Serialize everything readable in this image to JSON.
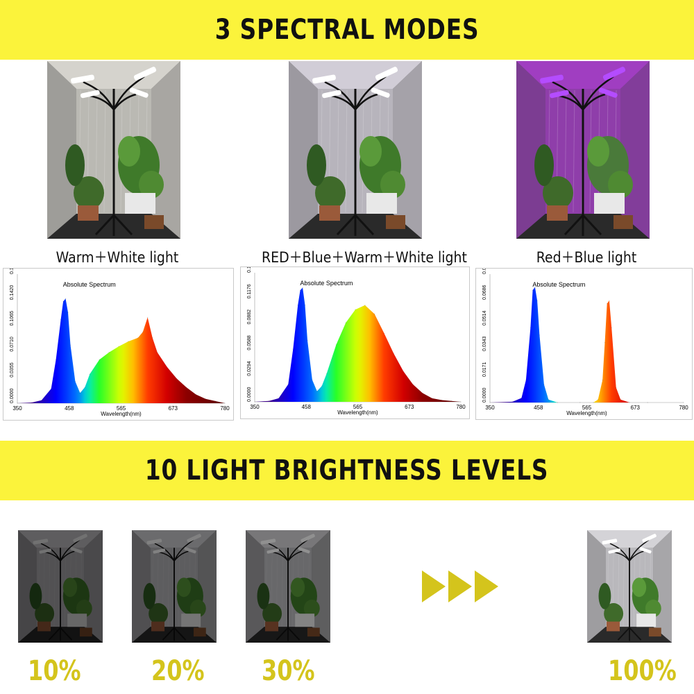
{
  "section1": {
    "title": "3 SPECTRAL MODES"
  },
  "section2": {
    "title": "10 LIGHT BRIGHTNESS LEVELS"
  },
  "modes": [
    {
      "caption": "Warm＋White light",
      "tint": "#f1efe6"
    },
    {
      "caption": "RED＋Blue＋Warm＋White light",
      "tint": "#ece8f2"
    },
    {
      "caption": "Red＋Blue light",
      "tint": "#b340d8"
    }
  ],
  "levels": [
    {
      "label": "10%",
      "brightness": 0.1
    },
    {
      "label": "20%",
      "brightness": 0.2
    },
    {
      "label": "30%",
      "brightness": 0.3
    },
    {
      "label": "100%",
      "brightness": 1.0
    }
  ],
  "colors": {
    "banner": "#fbf33b",
    "percent_text": "#d4c41c",
    "arrow": "#d4c41c"
  },
  "icons": {
    "next": "triple-play-arrow-icon"
  },
  "chart_data": [
    {
      "type": "area",
      "title": "Absolute Spectrum",
      "xlabel": "Wavelength(nm)",
      "ylabel": "",
      "xlim": [
        350,
        780
      ],
      "x_ticks": [
        "350",
        "458",
        "565",
        "673",
        "780"
      ],
      "y_ticks": [
        "0.0000",
        "0.0355",
        "0.0710",
        "0.1065",
        "0.1420",
        "0.1776"
      ],
      "ylim": [
        0,
        0.1776
      ],
      "x": [
        350,
        380,
        400,
        420,
        430,
        440,
        445,
        450,
        455,
        460,
        470,
        480,
        490,
        500,
        520,
        540,
        560,
        580,
        600,
        610,
        620,
        630,
        640,
        660,
        680,
        700,
        720,
        740,
        760,
        780
      ],
      "y": [
        0,
        0.001,
        0.004,
        0.02,
        0.06,
        0.115,
        0.14,
        0.144,
        0.125,
        0.08,
        0.03,
        0.014,
        0.022,
        0.04,
        0.06,
        0.07,
        0.078,
        0.085,
        0.09,
        0.098,
        0.118,
        0.09,
        0.07,
        0.05,
        0.034,
        0.022,
        0.012,
        0.006,
        0.003,
        0
      ]
    },
    {
      "type": "area",
      "title": "Absolute Spectrum",
      "xlabel": "Wavelength(nm)",
      "ylabel": "",
      "xlim": [
        350,
        780
      ],
      "x_ticks": [
        "350",
        "458",
        "565",
        "673",
        "780"
      ],
      "y_ticks": [
        "0.0000",
        "0.0294",
        "0.0588",
        "0.0882",
        "0.1176",
        "0.1470"
      ],
      "ylim": [
        0,
        0.147
      ],
      "x": [
        350,
        380,
        400,
        420,
        430,
        440,
        445,
        450,
        455,
        460,
        470,
        480,
        490,
        500,
        520,
        540,
        560,
        580,
        600,
        620,
        640,
        660,
        680,
        700,
        720,
        740,
        760,
        780
      ],
      "y": [
        0,
        0.001,
        0.004,
        0.02,
        0.06,
        0.11,
        0.127,
        0.13,
        0.11,
        0.07,
        0.025,
        0.012,
        0.018,
        0.032,
        0.065,
        0.09,
        0.105,
        0.11,
        0.1,
        0.078,
        0.055,
        0.035,
        0.02,
        0.01,
        0.004,
        0.002,
        0.001,
        0
      ]
    },
    {
      "type": "area",
      "title": "Absolute Spectrum",
      "xlabel": "Wavelength(nm)",
      "ylabel": "",
      "xlim": [
        350,
        780
      ],
      "x_ticks": [
        "350",
        "458",
        "565",
        "673",
        "780"
      ],
      "y_ticks": [
        "0.0000",
        "0.0171",
        "0.0343",
        "0.0514",
        "0.0686",
        "0.0857"
      ],
      "ylim": [
        0,
        0.0857
      ],
      "x": [
        350,
        400,
        420,
        430,
        440,
        445,
        450,
        455,
        460,
        470,
        480,
        500,
        550,
        580,
        590,
        600,
        605,
        610,
        615,
        620,
        630,
        640,
        660,
        700,
        780
      ],
      "y": [
        0,
        0.0005,
        0.003,
        0.015,
        0.05,
        0.075,
        0.077,
        0.068,
        0.045,
        0.012,
        0.002,
        0,
        0,
        0,
        0.002,
        0.015,
        0.04,
        0.066,
        0.068,
        0.05,
        0.01,
        0.002,
        0,
        0,
        0
      ]
    }
  ]
}
